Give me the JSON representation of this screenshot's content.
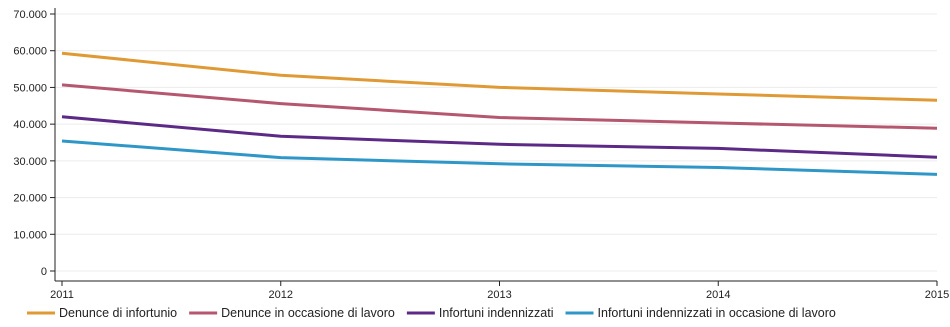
{
  "chart_data": {
    "type": "line",
    "title": "",
    "xlabel": "",
    "ylabel": "",
    "x": [
      "2011",
      "2012",
      "2013",
      "2014",
      "2015"
    ],
    "ylim": [
      0,
      70000
    ],
    "yticks": [
      0,
      10000,
      20000,
      30000,
      40000,
      50000,
      60000,
      70000
    ],
    "ytick_labels": [
      "0",
      "10.000",
      "20.000",
      "30.000",
      "40.000",
      "50.000",
      "60.000",
      "70.000"
    ],
    "grid": true,
    "legend_position": "bottom",
    "series": [
      {
        "name": "Denunce di infortunio",
        "color": "#e09a35",
        "values": [
          59300,
          53300,
          50000,
          48200,
          46500
        ]
      },
      {
        "name": "Denunce in occasione di lavoro",
        "color": "#b5576f",
        "values": [
          50700,
          45600,
          41800,
          40300,
          38900
        ]
      },
      {
        "name": "Infortuni indennizzati",
        "color": "#5c2a86",
        "values": [
          42000,
          36700,
          34500,
          33400,
          31000
        ]
      },
      {
        "name": "Infortuni indennizzati in occasione di lavoro",
        "color": "#2f97c8",
        "values": [
          35400,
          30900,
          29200,
          28200,
          26300
        ]
      }
    ]
  }
}
